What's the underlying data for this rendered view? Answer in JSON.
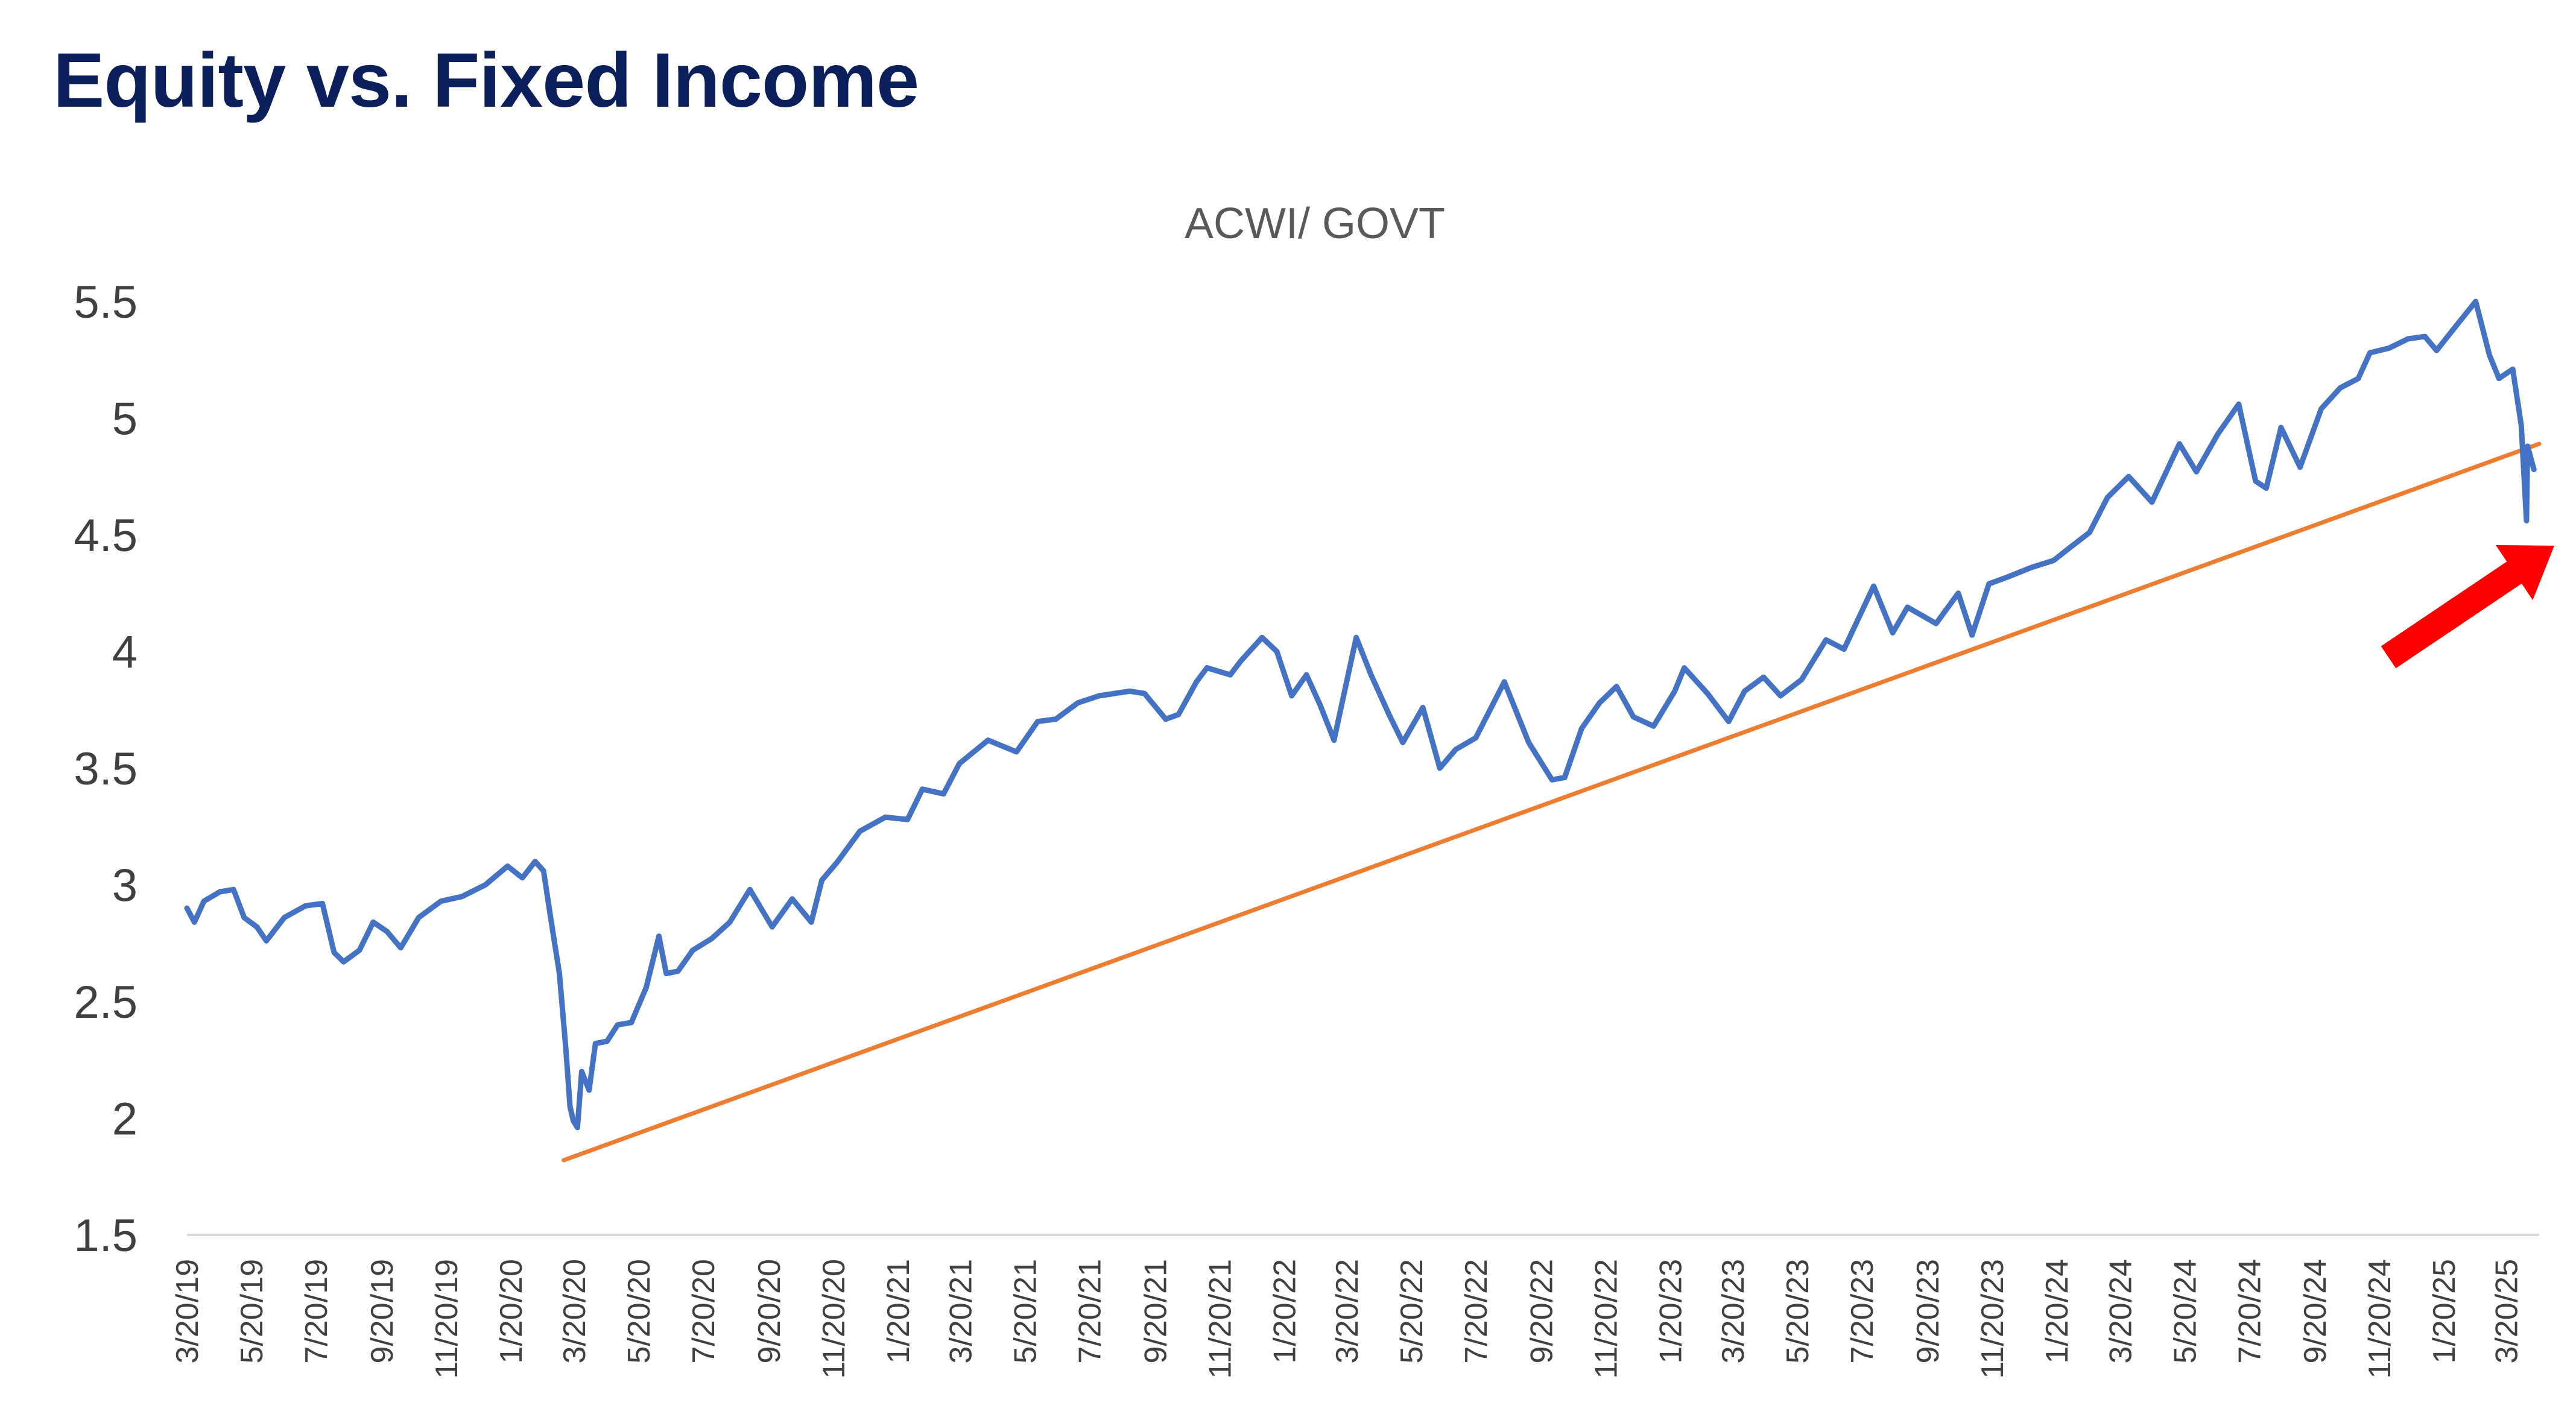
{
  "page": {
    "title": "Equity vs. Fixed Income"
  },
  "colors": {
    "title": "#0b1f5c",
    "series": "#4472c4",
    "trendline": "#ed7d31",
    "arrow": "#ff0000",
    "axis": "#d9d9d9",
    "text": "#404040"
  },
  "chart_data": {
    "type": "line",
    "title": "ACWI/ GOVT",
    "xlabel": "",
    "ylabel": "",
    "ylim": [
      1.5,
      5.5
    ],
    "yticks": [
      "5.5",
      "5",
      "4.5",
      "4",
      "3.5",
      "3",
      "2.5",
      "2",
      "1.5"
    ],
    "xlim": [
      "3/20/19",
      "4/20/25"
    ],
    "xticks": [
      "3/20/19",
      "5/20/19",
      "7/20/19",
      "9/20/19",
      "11/20/19",
      "1/20/20",
      "3/20/20",
      "5/20/20",
      "7/20/20",
      "9/20/20",
      "11/20/20",
      "1/20/21",
      "3/20/21",
      "5/20/21",
      "7/20/21",
      "9/20/21",
      "11/20/21",
      "1/20/22",
      "3/20/22",
      "5/20/22",
      "7/20/22",
      "9/20/22",
      "11/20/22",
      "1/20/23",
      "3/20/23",
      "5/20/23",
      "7/20/23",
      "9/20/23",
      "11/20/23",
      "1/20/24",
      "3/20/24",
      "5/20/24",
      "7/20/24",
      "9/20/24",
      "11/20/24",
      "1/20/25",
      "3/20/25"
    ],
    "grid": false,
    "legend": "none",
    "series": [
      {
        "type": "line",
        "points": [
          [
            "3/20/19",
            2.9
          ],
          [
            "3/27/19",
            2.84
          ],
          [
            "4/5/19",
            2.93
          ],
          [
            "4/20/19",
            2.97
          ],
          [
            "5/3/19",
            2.98
          ],
          [
            "5/13/19",
            2.86
          ],
          [
            "5/25/19",
            2.82
          ],
          [
            "6/3/19",
            2.76
          ],
          [
            "6/20/19",
            2.86
          ],
          [
            "7/10/19",
            2.91
          ],
          [
            "7/26/19",
            2.92
          ],
          [
            "8/6/19",
            2.71
          ],
          [
            "8/15/19",
            2.67
          ],
          [
            "8/30/19",
            2.72
          ],
          [
            "9/12/19",
            2.84
          ],
          [
            "9/25/19",
            2.8
          ],
          [
            "10/8/19",
            2.73
          ],
          [
            "10/25/19",
            2.86
          ],
          [
            "11/15/19",
            2.93
          ],
          [
            "12/5/19",
            2.95
          ],
          [
            "12/27/19",
            3.0
          ],
          [
            "1/17/20",
            3.08
          ],
          [
            "1/31/20",
            3.03
          ],
          [
            "2/12/20",
            3.1
          ],
          [
            "2/20/20",
            3.06
          ],
          [
            "2/27/20",
            2.85
          ],
          [
            "3/6/20",
            2.62
          ],
          [
            "3/12/20",
            2.3
          ],
          [
            "3/16/20",
            2.05
          ],
          [
            "3/19/20",
            1.99
          ],
          [
            "3/23/20",
            1.96
          ],
          [
            "3/27/20",
            2.2
          ],
          [
            "4/3/20",
            2.12
          ],
          [
            "4/9/20",
            2.32
          ],
          [
            "4/20/20",
            2.33
          ],
          [
            "4/30/20",
            2.4
          ],
          [
            "5/13/20",
            2.41
          ],
          [
            "5/27/20",
            2.56
          ],
          [
            "6/8/20",
            2.78
          ],
          [
            "6/15/20",
            2.62
          ],
          [
            "6/26/20",
            2.63
          ],
          [
            "7/10/20",
            2.72
          ],
          [
            "7/28/20",
            2.77
          ],
          [
            "8/14/20",
            2.84
          ],
          [
            "9/2/20",
            2.98
          ],
          [
            "9/23/20",
            2.82
          ],
          [
            "10/12/20",
            2.94
          ],
          [
            "10/30/20",
            2.84
          ],
          [
            "11/9/20",
            3.02
          ],
          [
            "11/24/20",
            3.1
          ],
          [
            "12/15/20",
            3.23
          ],
          [
            "1/8/21",
            3.29
          ],
          [
            "1/29/21",
            3.28
          ],
          [
            "2/12/21",
            3.41
          ],
          [
            "3/4/21",
            3.39
          ],
          [
            "3/19/21",
            3.52
          ],
          [
            "4/15/21",
            3.62
          ],
          [
            "5/12/21",
            3.57
          ],
          [
            "6/1/21",
            3.7
          ],
          [
            "6/18/21",
            3.71
          ],
          [
            "7/9/21",
            3.78
          ],
          [
            "7/29/21",
            3.81
          ],
          [
            "8/27/21",
            3.83
          ],
          [
            "9/10/21",
            3.82
          ],
          [
            "9/30/21",
            3.71
          ],
          [
            "10/12/21",
            3.73
          ],
          [
            "10/29/21",
            3.87
          ],
          [
            "11/8/21",
            3.93
          ],
          [
            "11/30/21",
            3.9
          ],
          [
            "12/10/21",
            3.96
          ],
          [
            "12/30/21",
            4.06
          ],
          [
            "1/13/22",
            4.0
          ],
          [
            "1/27/22",
            3.81
          ],
          [
            "2/10/22",
            3.9
          ],
          [
            "2/23/22",
            3.77
          ],
          [
            "3/8/22",
            3.62
          ],
          [
            "3/29/22",
            4.06
          ],
          [
            "4/12/22",
            3.9
          ],
          [
            "4/29/22",
            3.73
          ],
          [
            "5/12/22",
            3.61
          ],
          [
            "5/31/22",
            3.76
          ],
          [
            "6/16/22",
            3.5
          ],
          [
            "7/1/22",
            3.58
          ],
          [
            "7/20/22",
            3.63
          ],
          [
            "8/16/22",
            3.87
          ],
          [
            "9/8/22",
            3.61
          ],
          [
            "9/30/22",
            3.45
          ],
          [
            "10/12/22",
            3.46
          ],
          [
            "10/28/22",
            3.67
          ],
          [
            "11/14/22",
            3.78
          ],
          [
            "11/30/22",
            3.85
          ],
          [
            "12/16/22",
            3.72
          ],
          [
            "1/4/23",
            3.68
          ],
          [
            "1/24/23",
            3.83
          ],
          [
            "2/2/23",
            3.93
          ],
          [
            "2/24/23",
            3.82
          ],
          [
            "3/16/23",
            3.7
          ],
          [
            "3/31/23",
            3.83
          ],
          [
            "4/18/23",
            3.89
          ],
          [
            "5/4/23",
            3.81
          ],
          [
            "5/24/23",
            3.88
          ],
          [
            "6/16/23",
            4.05
          ],
          [
            "7/3/23",
            4.01
          ],
          [
            "7/31/23",
            4.28
          ],
          [
            "8/18/23",
            4.08
          ],
          [
            "9/1/23",
            4.19
          ],
          [
            "9/28/23",
            4.12
          ],
          [
            "10/19/23",
            4.25
          ],
          [
            "11/1/23",
            4.07
          ],
          [
            "11/17/23",
            4.29
          ],
          [
            "12/5/23",
            4.32
          ],
          [
            "12/27/23",
            4.36
          ],
          [
            "1/17/24",
            4.39
          ],
          [
            "1/31/24",
            4.44
          ],
          [
            "2/20/24",
            4.51
          ],
          [
            "3/8/24",
            4.66
          ],
          [
            "3/28/24",
            4.75
          ],
          [
            "4/19/24",
            4.64
          ],
          [
            "5/15/24",
            4.89
          ],
          [
            "5/31/24",
            4.77
          ],
          [
            "6/20/24",
            4.93
          ],
          [
            "7/10/24",
            5.06
          ],
          [
            "7/26/24",
            4.73
          ],
          [
            "8/5/24",
            4.7
          ],
          [
            "8/19/24",
            4.96
          ],
          [
            "9/6/24",
            4.79
          ],
          [
            "9/26/24",
            5.04
          ],
          [
            "10/14/24",
            5.13
          ],
          [
            "10/31/24",
            5.17
          ],
          [
            "11/11/24",
            5.28
          ],
          [
            "11/29/24",
            5.3
          ],
          [
            "12/17/24",
            5.34
          ],
          [
            "1/2/25",
            5.35
          ],
          [
            "1/13/25",
            5.29
          ],
          [
            "2/3/25",
            5.41
          ],
          [
            "2/19/25",
            5.5
          ],
          [
            "3/4/25",
            5.27
          ],
          [
            "3/13/25",
            5.17
          ],
          [
            "3/26/25",
            5.21
          ],
          [
            "4/3/25",
            4.97
          ],
          [
            "4/8/25",
            4.56
          ],
          [
            "4/9/25",
            4.88
          ],
          [
            "4/15/25",
            4.78
          ]
        ]
      },
      {
        "type": "line",
        "style": "trendline",
        "points": [
          [
            "3/10/20",
            1.82
          ],
          [
            "4/20/25",
            4.89
          ]
        ]
      }
    ],
    "annotations": [
      {
        "type": "arrow",
        "pointing": "up-right, toward the latest value"
      }
    ]
  }
}
